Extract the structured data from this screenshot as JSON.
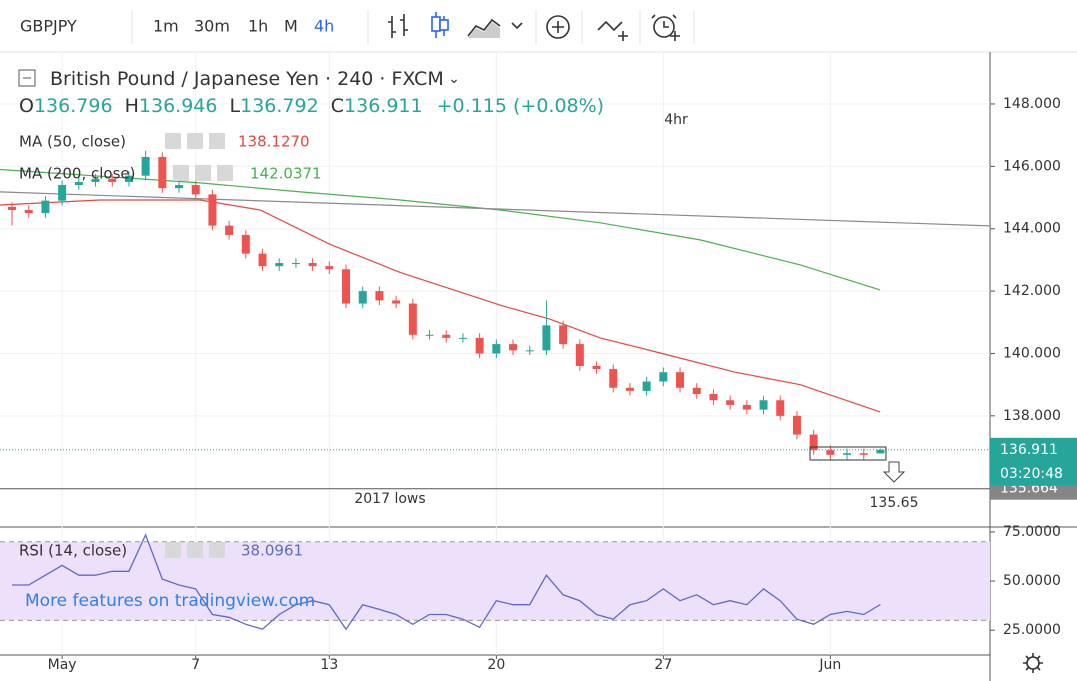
{
  "toolbar": {
    "symbol": "GBPJPY",
    "intervals": [
      "1m",
      "30m",
      "1h",
      "M",
      "4h"
    ],
    "active_interval": "4h"
  },
  "legend": {
    "title": "British Pound / Japanese Yen · 240 · FXCM",
    "ohlc": [
      {
        "key": "O",
        "value": "136.796"
      },
      {
        "key": "H",
        "value": "136.946"
      },
      {
        "key": "L",
        "value": "136.792"
      },
      {
        "key": "C",
        "value": "136.911"
      }
    ],
    "change": "+0.115 (+0.08%)"
  },
  "watermark": "More features on tradingview.com",
  "annotations": [
    "4hr",
    "2017 lows",
    "135.65"
  ],
  "chart_data": [
    {
      "type": "candlestick",
      "x": [
        -1.5,
        -1,
        -0.5,
        0,
        0.5,
        1,
        1.5,
        2,
        2.5,
        3,
        3.5,
        4,
        4.5,
        5,
        5.5,
        6,
        6.5,
        7,
        7.5,
        8,
        8.5,
        9,
        9.5,
        10,
        10.5,
        11,
        11.5,
        12,
        12.5,
        13,
        13.5,
        14,
        14.5,
        15,
        15.5,
        16,
        16.5,
        17,
        17.5,
        18,
        18.5,
        19,
        19.5,
        20,
        20.5,
        21,
        21.5,
        22,
        22.5,
        23,
        23.5,
        24,
        24.5
      ],
      "open": [
        144.7,
        144.6,
        144.5,
        144.9,
        145.4,
        145.5,
        145.6,
        145.5,
        145.7,
        146.3,
        145.3,
        145.4,
        145.1,
        144.1,
        143.8,
        143.2,
        142.8,
        142.9,
        142.9,
        142.8,
        142.7,
        141.6,
        142.0,
        141.7,
        141.6,
        140.6,
        140.6,
        140.5,
        140.5,
        140.0,
        140.3,
        140.1,
        140.1,
        140.9,
        140.3,
        139.6,
        139.5,
        138.9,
        138.8,
        139.1,
        139.4,
        138.9,
        138.7,
        138.5,
        138.35,
        138.2,
        138.5,
        138.0,
        137.4,
        136.9,
        136.75,
        136.8,
        136.796
      ],
      "high": [
        144.85,
        144.75,
        145.05,
        145.55,
        145.65,
        145.75,
        145.75,
        145.85,
        146.5,
        146.45,
        145.55,
        145.55,
        145.25,
        144.25,
        143.95,
        143.35,
        143.05,
        143.05,
        143.05,
        142.95,
        142.85,
        142.15,
        142.15,
        141.85,
        141.75,
        140.75,
        140.75,
        140.65,
        140.65,
        140.45,
        140.45,
        140.25,
        141.7,
        141.05,
        140.45,
        139.75,
        139.65,
        139.05,
        139.25,
        139.55,
        139.55,
        139.05,
        138.85,
        138.65,
        138.5,
        138.65,
        138.65,
        138.15,
        137.55,
        137.05,
        136.95,
        136.95,
        136.946
      ],
      "low": [
        144.1,
        144.35,
        144.35,
        144.75,
        145.25,
        145.35,
        145.35,
        145.35,
        145.55,
        145.15,
        145.15,
        144.95,
        143.95,
        143.65,
        143.05,
        142.65,
        142.65,
        142.75,
        142.65,
        142.55,
        141.45,
        141.45,
        141.55,
        141.45,
        140.45,
        140.45,
        140.35,
        140.35,
        139.85,
        139.85,
        139.95,
        139.95,
        139.95,
        140.15,
        139.45,
        139.35,
        138.75,
        138.65,
        138.65,
        138.95,
        138.75,
        138.55,
        138.35,
        138.2,
        138.05,
        138.05,
        137.85,
        137.25,
        136.75,
        136.6,
        136.6,
        136.6,
        136.792
      ],
      "close": [
        144.6,
        144.5,
        144.9,
        145.4,
        145.5,
        145.6,
        145.5,
        145.7,
        146.3,
        145.3,
        145.4,
        145.1,
        144.1,
        143.8,
        143.2,
        142.8,
        142.9,
        142.9,
        142.8,
        142.7,
        141.6,
        142.0,
        141.7,
        141.6,
        140.6,
        140.6,
        140.5,
        140.5,
        140.0,
        140.3,
        140.1,
        140.1,
        140.9,
        140.3,
        139.6,
        139.5,
        138.9,
        138.8,
        139.1,
        139.4,
        138.9,
        138.7,
        138.5,
        138.35,
        138.2,
        138.5,
        138.0,
        137.4,
        136.9,
        136.75,
        136.8,
        136.75,
        136.911
      ],
      "up_color": "#26a69a",
      "down_color": "#ef5350",
      "xlim": [
        -1.86,
        27.78
      ],
      "xticks": [
        {
          "value": 0,
          "label": "May"
        },
        {
          "value": 4,
          "label": "7"
        },
        {
          "value": 8,
          "label": "13"
        },
        {
          "value": 13,
          "label": "20"
        },
        {
          "value": 18,
          "label": "27"
        },
        {
          "value": 23,
          "label": "Jun"
        }
      ],
      "ylim": [
        134.5,
        149.57
      ],
      "yticks": [
        {
          "value": 138,
          "label": "138.000"
        },
        {
          "value": 140,
          "label": "140.000"
        },
        {
          "value": 142,
          "label": "142.000"
        },
        {
          "value": 144,
          "label": "144.000"
        },
        {
          "value": 146,
          "label": "146.000"
        },
        {
          "value": 148,
          "label": "148.000"
        }
      ],
      "grid": true,
      "series": [
        {
          "name": "MA (50, close)",
          "value_label": "138.1270",
          "color": "#e8463f",
          "x": [
            -1.86,
            1.14,
            4.13,
            5.93,
            8.02,
            10.12,
            13.11,
            14.61,
            16.11,
            18.14,
            20.15,
            22.1,
            24.49
          ],
          "values": [
            144.76,
            144.92,
            144.92,
            144.6,
            143.5,
            142.6,
            141.55,
            141.1,
            140.5,
            139.95,
            139.4,
            139.0,
            138.127
          ]
        },
        {
          "name": "MA (200, close)",
          "value_label": "142.0371",
          "color": "#4caf50",
          "x": [
            -1.86,
            4.13,
            7.13,
            10.12,
            13.11,
            16.11,
            19.1,
            22.1,
            24.49
          ],
          "values": [
            145.9,
            145.47,
            145.18,
            144.92,
            144.6,
            144.19,
            143.64,
            142.84,
            142.0371
          ]
        },
        {
          "color": "#8a8a8a",
          "x": [
            -1.86,
            27.78
          ],
          "values": [
            145.18,
            144.09
          ]
        }
      ],
      "last_price": {
        "value": 136.911,
        "label": "136.911"
      },
      "countdown": "03:20:48",
      "level": {
        "value": 135.664,
        "label": "135.664"
      }
    },
    {
      "type": "line",
      "title": "RSI (14, close)",
      "value_label": "38.0961",
      "color": "#5c6bc0",
      "band": [
        30,
        70
      ],
      "band_color": "#ece0fa",
      "xlim": [
        -1.86,
        27.78
      ],
      "ylim": [
        12.4,
        77
      ],
      "yticks": [
        {
          "value": 25,
          "label": "25.0000"
        },
        {
          "value": 50,
          "label": "50.0000"
        },
        {
          "value": 75,
          "label": "75.0000"
        }
      ],
      "x": [
        -1.5,
        -1,
        -0.5,
        0,
        0.5,
        1,
        1.5,
        2,
        2.5,
        3,
        3.5,
        4,
        4.5,
        5,
        5.5,
        6,
        6.5,
        7,
        7.5,
        8,
        8.5,
        9,
        9.5,
        10,
        10.5,
        11,
        11.5,
        12,
        12.5,
        13,
        13.5,
        14,
        14.5,
        15,
        15.5,
        16,
        16.5,
        17,
        17.5,
        18,
        18.5,
        19,
        19.5,
        20,
        20.5,
        21,
        21.5,
        22,
        22.5,
        23,
        23.5,
        24,
        24.5
      ],
      "values": [
        48,
        48,
        53,
        58,
        53,
        53,
        55,
        55,
        73.5,
        51,
        48,
        46,
        33,
        31.6,
        28,
        25.5,
        33,
        38,
        40,
        38,
        25.5,
        38,
        35.6,
        33,
        28,
        33,
        33,
        30.6,
        26.5,
        40,
        38,
        38,
        53,
        43,
        40,
        33,
        30.6,
        38,
        40,
        46,
        40,
        43,
        38,
        40,
        38,
        46,
        40,
        30.6,
        28,
        33,
        34.6,
        33,
        38.0961
      ]
    }
  ]
}
